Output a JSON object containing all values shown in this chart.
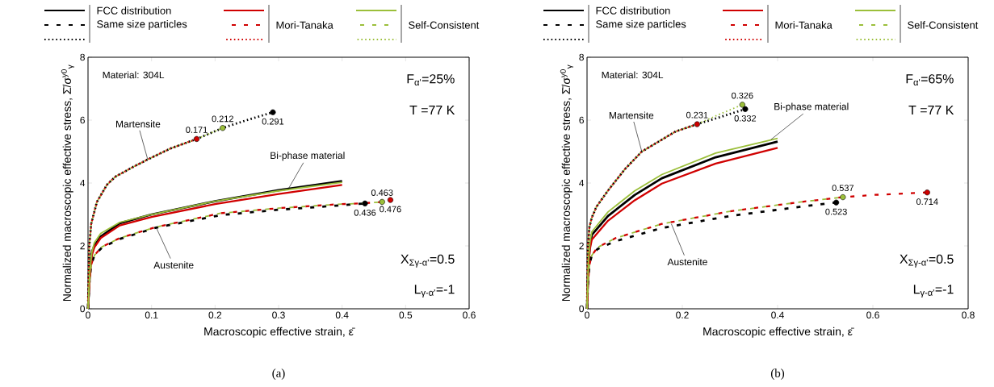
{
  "chart_data": [
    {
      "type": "line",
      "xlabel": "Macroscopic effective strain, ε̄",
      "ylabel": "Normalized macroscopic effective stress, Σ̄/σ$^{y0}$$_{γ}$",
      "xlim": [
        0,
        0.6
      ],
      "ylim": [
        0,
        8
      ],
      "xticks": [
        0,
        0.1,
        0.2,
        0.3,
        0.4,
        0.5,
        0.6
      ],
      "yticks": [
        0,
        2,
        4,
        6,
        8
      ],
      "legend": "top",
      "series": [
        {
          "name": "FCC distribution",
          "color": "#000000",
          "line_style": "solid",
          "x": [
            0,
            0.003,
            0.006,
            0.01,
            0.02,
            0.05,
            0.1,
            0.2,
            0.3,
            0.4
          ],
          "values": [
            0,
            1.2,
            1.8,
            2.0,
            2.3,
            2.72,
            3.0,
            3.42,
            3.77,
            4.06
          ]
        },
        {
          "name": "Same size particles",
          "color": "#000000",
          "line_style": "dashed",
          "x": [
            0,
            0.002,
            0.005,
            0.01,
            0.022,
            0.05,
            0.107,
            0.209,
            0.3,
            0.39,
            0.436
          ],
          "values": [
            0,
            0.8,
            1.4,
            1.7,
            1.95,
            2.22,
            2.58,
            2.98,
            3.15,
            3.28,
            3.35
          ]
        },
        {
          "color": "#000000",
          "line_style": "dotted",
          "x": [
            0,
            0.002,
            0.005,
            0.014,
            0.03,
            0.043,
            0.07,
            0.094,
            0.13,
            0.171,
            0.212,
            0.25,
            0.291
          ],
          "values": [
            0,
            2.0,
            2.7,
            3.4,
            3.95,
            4.2,
            4.5,
            4.75,
            5.1,
            5.4,
            5.75,
            6.0,
            6.25
          ]
        },
        {
          "color": "#d00000",
          "line_style": "solid",
          "x": [
            0,
            0.003,
            0.006,
            0.01,
            0.02,
            0.05,
            0.1,
            0.2,
            0.3,
            0.4
          ],
          "values": [
            0,
            1.1,
            1.7,
            1.95,
            2.25,
            2.65,
            2.92,
            3.33,
            3.65,
            3.94
          ]
        },
        {
          "name": "Mori-Tanaka",
          "color": "#d00000",
          "line_style": "dashed",
          "x": [
            0,
            0.002,
            0.005,
            0.01,
            0.022,
            0.05,
            0.107,
            0.209,
            0.3,
            0.39,
            0.436,
            0.463,
            0.476
          ],
          "values": [
            0,
            0.8,
            1.4,
            1.7,
            1.97,
            2.25,
            2.6,
            3.04,
            3.2,
            3.32,
            3.36,
            3.4,
            3.46
          ]
        },
        {
          "color": "#d00000",
          "line_style": "dotted",
          "x": [
            0,
            0.002,
            0.005,
            0.014,
            0.03,
            0.043,
            0.07,
            0.094,
            0.13,
            0.171
          ],
          "values": [
            0,
            2.0,
            2.7,
            3.4,
            3.95,
            4.2,
            4.5,
            4.75,
            5.1,
            5.4
          ]
        },
        {
          "color": "#9bbf3a",
          "line_style": "solid",
          "x": [
            0,
            0.003,
            0.006,
            0.01,
            0.02,
            0.05,
            0.1,
            0.2,
            0.3,
            0.4
          ],
          "values": [
            0,
            1.2,
            1.8,
            2.1,
            2.4,
            2.75,
            3.0,
            3.42,
            3.75,
            4.02
          ]
        },
        {
          "name": "Self-Consistent",
          "color": "#9bbf3a",
          "line_style": "dashed",
          "x": [
            0,
            0.002,
            0.005,
            0.01,
            0.022,
            0.05,
            0.107,
            0.209,
            0.3,
            0.39,
            0.436,
            0.463
          ],
          "values": [
            0,
            0.8,
            1.4,
            1.7,
            1.97,
            2.25,
            2.6,
            3.04,
            3.2,
            3.32,
            3.36,
            3.4
          ]
        },
        {
          "color": "#9bbf3a",
          "line_style": "dotted",
          "x": [
            0,
            0.002,
            0.005,
            0.014,
            0.03,
            0.043,
            0.07,
            0.094,
            0.13,
            0.171,
            0.212
          ],
          "values": [
            0,
            2.0,
            2.7,
            3.4,
            3.95,
            4.2,
            4.5,
            4.75,
            5.1,
            5.4,
            5.75
          ]
        },
        {
          "type": "scatter",
          "marker": "circle",
          "x": [
            0.291,
            0.212,
            0.171,
            0.436,
            0.463,
            0.476
          ],
          "values": [
            6.25,
            5.75,
            5.4,
            3.35,
            3.4,
            3.46
          ],
          "colors": [
            "#000000",
            "#9bbf3a",
            "#d00000",
            "#000000",
            "#9bbf3a",
            "#d00000"
          ]
        }
      ],
      "annotations": [
        "Material: 304L",
        "F$_{α'}$=25%",
        "T =77 K",
        "X$_{Σγ-α'}$=0.5",
        "L$_{γ-α'}$=-1",
        {
          "text": "Martensite",
          "x": 0.094,
          "y": 4.75
        },
        {
          "text": "Bi-phase material",
          "x": 0.315,
          "y": 3.8
        },
        {
          "text": "Austenite",
          "x": 0.107,
          "y": 2.6
        },
        {
          "text": "0.171",
          "x": 0.171,
          "y": 5.4
        },
        {
          "text": "0.436",
          "x": 0.436,
          "y": 3.35
        },
        {
          "text": "0.212",
          "x": 0.212,
          "y": 5.75
        },
        {
          "text": "0.476",
          "x": 0.476,
          "y": 3.46
        },
        {
          "text": "0.463",
          "x": 0.463,
          "y": 3.4
        },
        {
          "text": "0.291",
          "x": 0.291,
          "y": 6.25
        },
        "(a)"
      ]
    },
    {
      "type": "line",
      "xlabel": "Macroscopic effective strain, ε̄",
      "ylabel": "Normalized macroscopic effective stress, Σ̄/σ$^{y0}$$_{γ}$",
      "xlim": [
        0,
        0.8
      ],
      "ylim": [
        0,
        8
      ],
      "xticks": [
        0,
        0.2,
        0.4,
        0.6,
        0.8
      ],
      "yticks": [
        0,
        2,
        4,
        6,
        8
      ],
      "legend": "top",
      "series": [
        {
          "name": "FCC distribution",
          "color": "#000000",
          "line_style": "solid",
          "x": [
            0,
            0.003,
            0.006,
            0.01,
            0.044,
            0.1,
            0.157,
            0.27,
            0.4
          ],
          "values": [
            0,
            1.45,
            2.0,
            2.35,
            2.95,
            3.62,
            4.15,
            4.82,
            5.32
          ]
        },
        {
          "name": "Same size particles",
          "color": "#000000",
          "line_style": "dashed",
          "x": [
            0,
            0.002,
            0.005,
            0.01,
            0.022,
            0.06,
            0.157,
            0.3,
            0.45,
            0.523
          ],
          "values": [
            0,
            0.8,
            1.4,
            1.7,
            1.9,
            2.15,
            2.57,
            2.95,
            3.25,
            3.38
          ]
        },
        {
          "color": "#000000",
          "line_style": "dotted",
          "x": [
            0,
            0.002,
            0.005,
            0.01,
            0.02,
            0.044,
            0.08,
            0.115,
            0.186,
            0.231,
            0.28,
            0.332
          ],
          "values": [
            0,
            2.0,
            2.6,
            2.9,
            3.25,
            3.76,
            4.45,
            5.0,
            5.64,
            5.87,
            6.1,
            6.35
          ]
        },
        {
          "color": "#d00000",
          "line_style": "solid",
          "x": [
            0,
            0.003,
            0.006,
            0.01,
            0.044,
            0.1,
            0.157,
            0.27,
            0.4
          ],
          "values": [
            0,
            1.4,
            1.9,
            2.2,
            2.8,
            3.45,
            3.98,
            4.62,
            5.12
          ]
        },
        {
          "name": "Mori-Tanaka",
          "color": "#d00000",
          "line_style": "dashed",
          "x": [
            0,
            0.002,
            0.005,
            0.01,
            0.022,
            0.06,
            0.157,
            0.3,
            0.45,
            0.537,
            0.6,
            0.714
          ],
          "values": [
            0,
            0.8,
            1.4,
            1.7,
            1.95,
            2.25,
            2.7,
            3.1,
            3.4,
            3.55,
            3.62,
            3.7
          ]
        },
        {
          "color": "#d00000",
          "line_style": "dotted",
          "x": [
            0,
            0.002,
            0.005,
            0.01,
            0.02,
            0.044,
            0.08,
            0.115,
            0.186,
            0.231
          ],
          "values": [
            0,
            2.0,
            2.6,
            2.9,
            3.25,
            3.76,
            4.45,
            5.0,
            5.64,
            5.87
          ]
        },
        {
          "color": "#9bbf3a",
          "line_style": "solid",
          "x": [
            0,
            0.003,
            0.006,
            0.01,
            0.044,
            0.1,
            0.157,
            0.27,
            0.4
          ],
          "values": [
            0,
            1.5,
            2.1,
            2.45,
            3.08,
            3.75,
            4.27,
            4.95,
            5.42
          ]
        },
        {
          "name": "Self-Consistent",
          "color": "#9bbf3a",
          "line_style": "dashed",
          "x": [
            0,
            0.002,
            0.005,
            0.01,
            0.022,
            0.06,
            0.157,
            0.3,
            0.45,
            0.537
          ],
          "values": [
            0,
            0.8,
            1.4,
            1.7,
            1.95,
            2.25,
            2.7,
            3.1,
            3.4,
            3.55
          ]
        },
        {
          "color": "#9bbf3a",
          "line_style": "dotted",
          "x": [
            0,
            0.002,
            0.005,
            0.01,
            0.02,
            0.044,
            0.08,
            0.115,
            0.186,
            0.231,
            0.28,
            0.326
          ],
          "values": [
            0,
            2.0,
            2.6,
            2.9,
            3.25,
            3.76,
            4.45,
            5.0,
            5.64,
            5.87,
            6.2,
            6.49
          ]
        },
        {
          "type": "scatter",
          "marker": "circle",
          "x": [
            0.231,
            0.326,
            0.332,
            0.523,
            0.537,
            0.714
          ],
          "values": [
            5.87,
            6.49,
            6.35,
            3.38,
            3.55,
            3.7
          ],
          "colors": [
            "#d00000",
            "#9bbf3a",
            "#000000",
            "#000000",
            "#9bbf3a",
            "#d00000"
          ]
        }
      ],
      "annotations": [
        "Material: 304L",
        "F$_{α'}$=65%",
        "T =77 K",
        "X$_{Σγ-α'}$=0.5",
        "L$_{γ-α'}$=-1",
        {
          "text": "Martensite",
          "x": 0.115,
          "y": 5.0
        },
        {
          "text": "Bi-phase material",
          "x": 0.386,
          "y": 5.38
        },
        {
          "text": "Austenite",
          "x": 0.177,
          "y": 2.7
        },
        {
          "text": "0.231",
          "x": 0.231,
          "y": 5.87
        },
        {
          "text": "0.332",
          "x": 0.332,
          "y": 6.35
        },
        {
          "text": "0.326",
          "x": 0.326,
          "y": 6.49
        },
        {
          "text": "0.523",
          "x": 0.523,
          "y": 3.38
        },
        {
          "text": "0.537",
          "x": 0.537,
          "y": 3.55
        },
        {
          "text": "0.714",
          "x": 0.714,
          "y": 3.7
        },
        "(b)"
      ]
    }
  ]
}
